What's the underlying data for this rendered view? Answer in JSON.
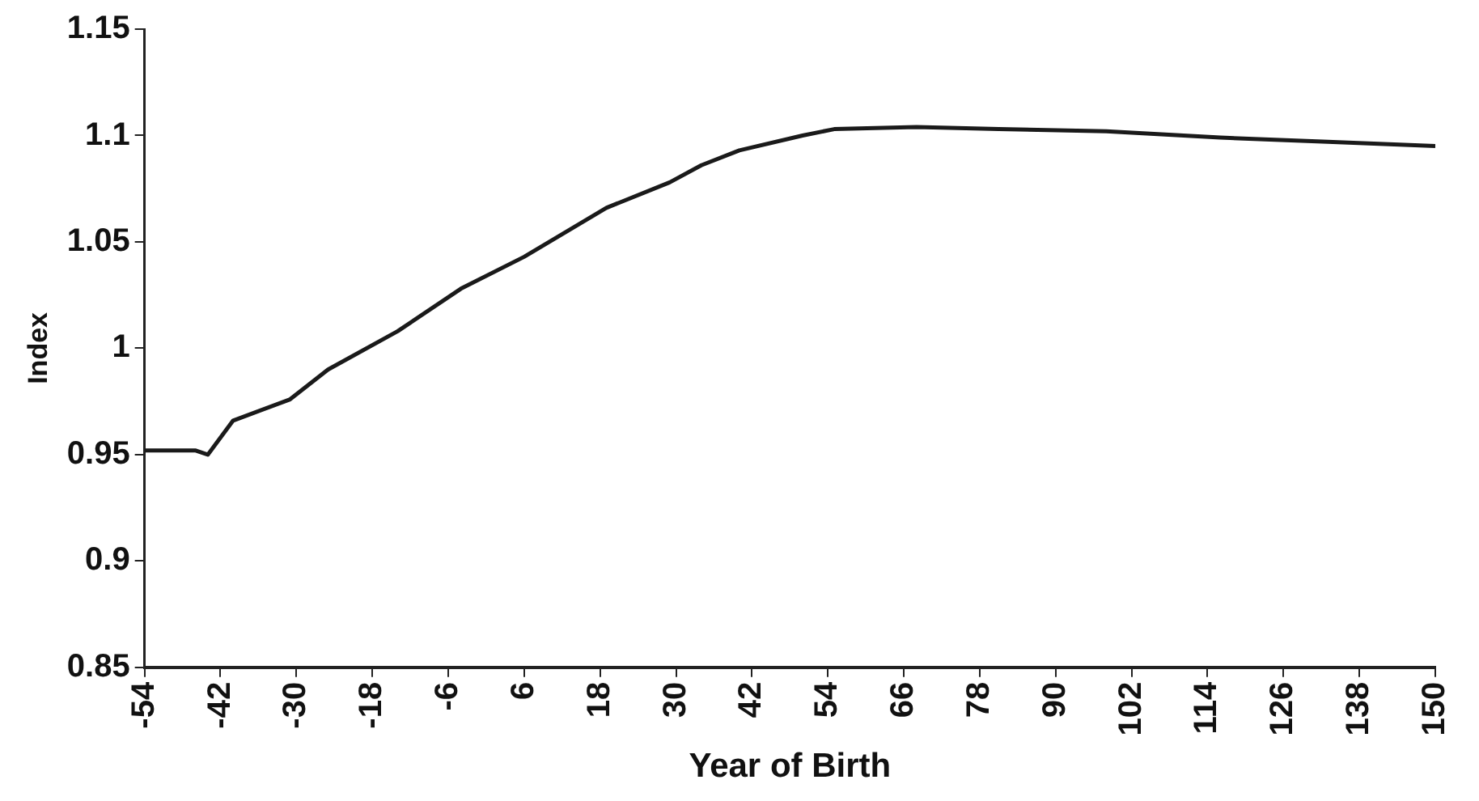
{
  "chart_data": {
    "type": "line",
    "xlabel": "Year of Birth",
    "ylabel": "Index",
    "x": [
      -54,
      -46,
      -44,
      -40,
      -31,
      -25,
      -14,
      -4,
      6,
      19,
      29,
      34,
      40,
      50,
      55,
      68,
      81,
      98,
      116,
      133,
      150
    ],
    "series": [
      {
        "color": "#1a1a1a",
        "values": [
          0.952,
          0.952,
          0.95,
          0.966,
          0.976,
          0.99,
          1.008,
          1.028,
          1.043,
          1.066,
          1.078,
          1.086,
          1.093,
          1.1,
          1.103,
          1.104,
          1.103,
          1.102,
          1.099,
          1.097,
          1.095
        ]
      }
    ],
    "xlim": [
      -54,
      150
    ],
    "xticks": [
      -54,
      -42,
      -30,
      -18,
      -6,
      6,
      18,
      30,
      42,
      54,
      66,
      78,
      90,
      102,
      114,
      126,
      138,
      150
    ],
    "ylim": [
      0.85,
      1.15
    ],
    "yticks": [
      0.85,
      0.9,
      0.95,
      1,
      1.05,
      1.1,
      1.15
    ],
    "grid": false,
    "legend": false,
    "marker": "none",
    "line_style": "solid"
  }
}
